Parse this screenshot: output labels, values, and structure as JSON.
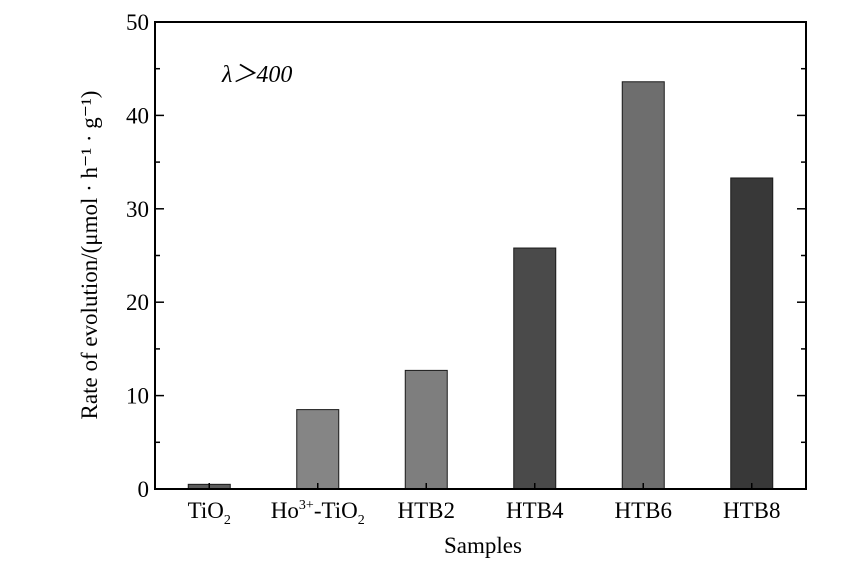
{
  "chart_data": {
    "type": "bar",
    "categories": [
      {
        "main": "TiO",
        "sub": "2"
      },
      {
        "main": "Ho",
        "sup": "3+",
        "rest": "-TiO",
        "sub": "2"
      },
      {
        "main": "HTB2"
      },
      {
        "main": "HTB4"
      },
      {
        "main": "HTB6"
      },
      {
        "main": "HTB8"
      }
    ],
    "values": [
      0.5,
      8.5,
      12.7,
      25.8,
      43.6,
      33.3
    ],
    "bar_colors": [
      "#5c5c5c",
      "#858585",
      "#7e7e7e",
      "#4a4a4a",
      "#6e6e6e",
      "#383838"
    ],
    "ylim": [
      0,
      50
    ],
    "yticks": [
      0,
      10,
      20,
      30,
      40,
      50
    ],
    "xlabel": "Samples",
    "ylabel": "Rate of evolution/(μmol · h⁻¹ · g⁻¹)",
    "annotation": "λ＞400",
    "grid": false
  }
}
